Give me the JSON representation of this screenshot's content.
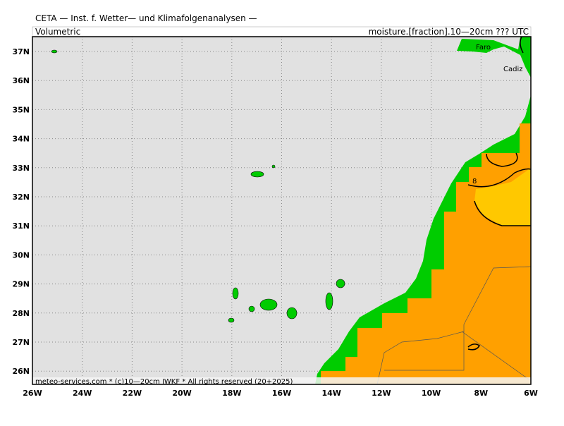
{
  "header": {
    "title": "CETA — Inst. f. Wetter— und Klimafolgenanalysen —",
    "left": "Volumetric",
    "right": "moisture.[fraction].10—20cm ??? UTC"
  },
  "map": {
    "lat_labels": [
      "37N",
      "36N",
      "35N",
      "34N",
      "33N",
      "32N",
      "31N",
      "30N",
      "29N",
      "28N",
      "27N",
      "26N"
    ],
    "lon_labels": [
      "26W",
      "24W",
      "22W",
      "20W",
      "18W",
      "16W",
      "14W",
      "12W",
      "10W",
      "8W",
      "6W"
    ],
    "places": [
      "Faro",
      "Cadiz"
    ],
    "contour_label": "8"
  },
  "footer": "meteo-services.com * (c)10—20cm IWKF * All rights reserved (20+2025)"
}
